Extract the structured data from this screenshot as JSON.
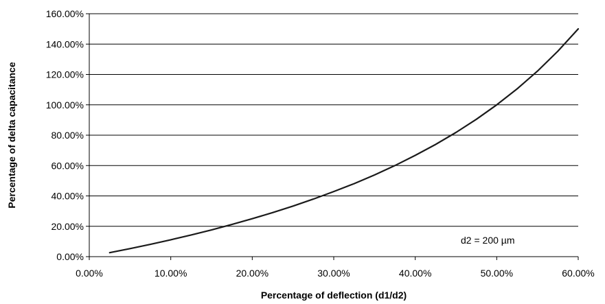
{
  "chart_data": {
    "type": "line",
    "title": "",
    "xlabel": "Percentage of deflection (d1/d2)",
    "ylabel": "Percentage of delta capacitance",
    "x_tick_labels": [
      "0.00%",
      "10.00%",
      "20.00%",
      "30.00%",
      "40.00%",
      "50.00%",
      "60.00%"
    ],
    "y_tick_labels": [
      "0.00%",
      "20.00%",
      "40.00%",
      "60.00%",
      "80.00%",
      "100.00%",
      "120.00%",
      "140.00%",
      "160.00%"
    ],
    "xlim": [
      0,
      60
    ],
    "ylim": [
      0,
      160
    ],
    "grid": "horizontal",
    "legend": "none",
    "line_color": "#1a1a1a",
    "annotation": "d2 = 200 µm",
    "series": [
      {
        "x": [
          2.5,
          5,
          7.5,
          10,
          12.5,
          15,
          17.5,
          20,
          22.5,
          25,
          27.5,
          30,
          32.5,
          35,
          37.5,
          40,
          42.5,
          45,
          47.5,
          50,
          52.5,
          55,
          57.5,
          60
        ],
        "y": [
          2.6,
          5.3,
          8.1,
          11.1,
          14.3,
          17.6,
          21.2,
          25.0,
          29.0,
          33.3,
          37.9,
          42.9,
          48.1,
          53.8,
          60.0,
          66.7,
          73.9,
          81.8,
          90.5,
          100.0,
          110.5,
          122.2,
          135.3,
          150.0
        ]
      }
    ]
  }
}
